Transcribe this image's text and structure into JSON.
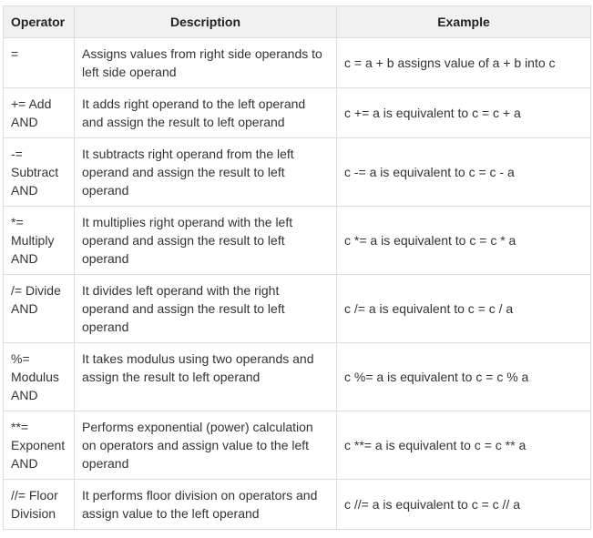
{
  "table": {
    "headers": [
      "Operator",
      "Description",
      "Example"
    ],
    "rows": [
      {
        "operator": "=",
        "description": "Assigns values from right side operands to left side operand",
        "example": "c = a + b assigns value of a + b into c"
      },
      {
        "operator": "+= Add AND",
        "description": "It adds right operand to the left operand and assign the result to left operand",
        "example": "c += a is equivalent to c = c + a"
      },
      {
        "operator": "-= Subtract AND",
        "description": "It subtracts right operand from the left operand and assign the result to left operand",
        "example": "c -= a is equivalent to c = c - a"
      },
      {
        "operator": "*= Multiply AND",
        "description": "It multiplies right operand with the left operand and assign the result to left operand",
        "example": "c *= a is equivalent to c = c * a"
      },
      {
        "operator": "/= Divide AND",
        "description": "It divides left operand with the right operand and assign the result to left operand",
        "example": "c /= a is equivalent to c = c / a"
      },
      {
        "operator": "%= Modulus AND",
        "description": "It takes modulus using two operands and assign the result to left operand",
        "example": "c %= a is equivalent to c = c % a"
      },
      {
        "operator": "**= Exponent AND",
        "description": "Performs exponential (power) calculation on operators and assign value to the left operand",
        "example": "c **= a is equivalent to c = c ** a"
      },
      {
        "operator": "//= Floor Division",
        "description": "It performs floor division on operators and assign value to the left operand",
        "example": "c //= a is equivalent to c = c // a"
      }
    ]
  }
}
